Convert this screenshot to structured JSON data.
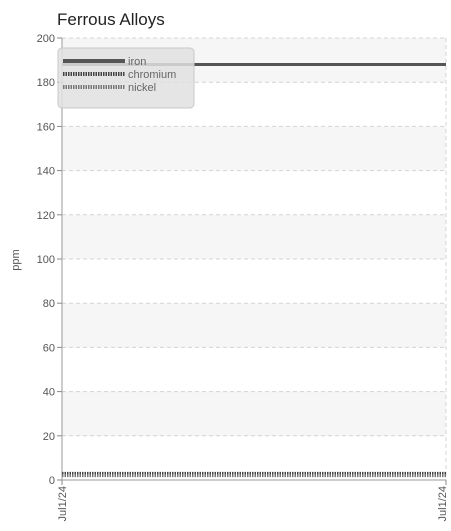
{
  "chart_data": {
    "type": "line",
    "title": "Ferrous Alloys",
    "xlabel": "",
    "ylabel": "ppm",
    "x": [
      "Jul1/24",
      "Jul1/24"
    ],
    "ylim": [
      0,
      200
    ],
    "yticks": [
      0,
      20,
      40,
      60,
      80,
      100,
      120,
      140,
      160,
      180,
      200
    ],
    "grid": true,
    "legend_position": "top-left",
    "series": [
      {
        "name": "iron",
        "values": [
          188,
          188
        ],
        "color": "#555555",
        "style": "solid"
      },
      {
        "name": "chromium",
        "values": [
          3,
          3
        ],
        "color": "#444444",
        "style": "dotted"
      },
      {
        "name": "nickel",
        "values": [
          2,
          2
        ],
        "color": "#777777",
        "style": "dotted"
      }
    ]
  }
}
